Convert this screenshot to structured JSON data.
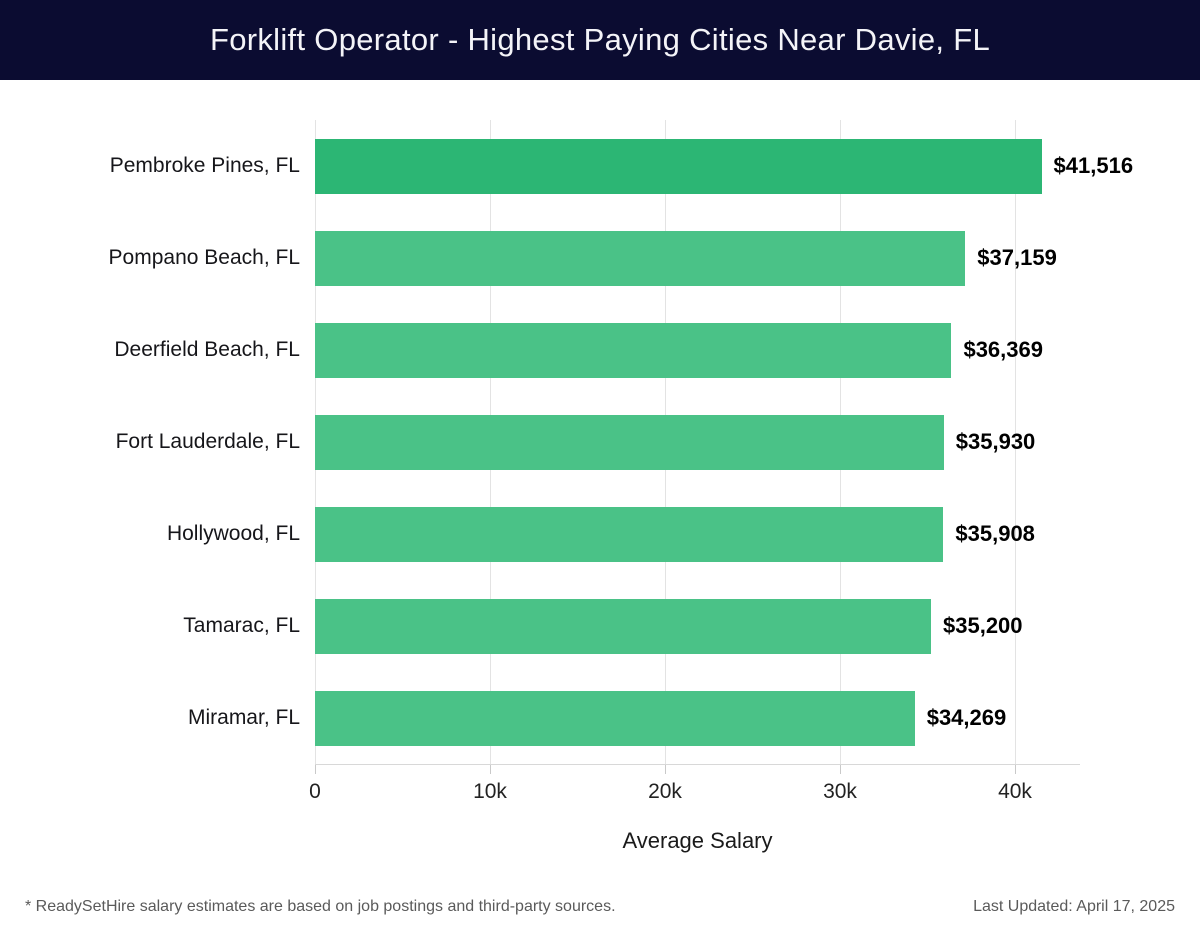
{
  "header": {
    "title": "Forklift Operator - Highest Paying Cities Near Davie, FL",
    "bg_color": "#0b0c31",
    "text_color": "#f4f4f8"
  },
  "chart_data": {
    "type": "bar",
    "orientation": "horizontal",
    "title": "Forklift Operator - Highest Paying Cities Near Davie, FL",
    "categories": [
      "Pembroke Pines, FL",
      "Pompano Beach, FL",
      "Deerfield Beach, FL",
      "Fort Lauderdale, FL",
      "Hollywood, FL",
      "Tamarac, FL",
      "Miramar, FL"
    ],
    "values": [
      41516,
      37159,
      36369,
      35930,
      35908,
      35200,
      34269
    ],
    "value_labels": [
      "$41,516",
      "$37,159",
      "$36,369",
      "$35,930",
      "$35,908",
      "$35,200",
      "$34,269"
    ],
    "xlabel": "Average Salary",
    "ylabel": "",
    "xlim": [
      0,
      43714
    ],
    "x_ticks": [
      {
        "value": 0,
        "label": "0"
      },
      {
        "value": 10000,
        "label": "10k"
      },
      {
        "value": 20000,
        "label": "20k"
      },
      {
        "value": 30000,
        "label": "30k"
      },
      {
        "value": 40000,
        "label": "40k"
      }
    ],
    "grid": "vertical",
    "legend": "none",
    "highlight_index": 0,
    "colors": {
      "highlight_bar": "#2cb674",
      "default_bar": "#4ac287",
      "gridline": "#e3e3e3",
      "axis_line": "#d8d8d8"
    }
  },
  "footer": {
    "note": "* ReadySetHire salary estimates are based on job postings and third-party sources.",
    "last_updated": "Last Updated: April 17, 2025"
  }
}
